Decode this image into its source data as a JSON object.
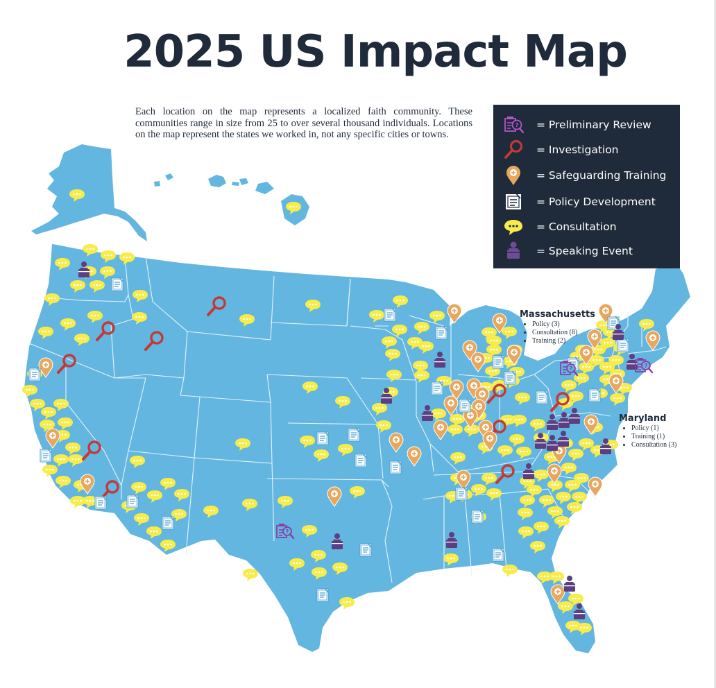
{
  "title": "2025 US Impact Map",
  "intro": "Each location on the map represents a localized faith community. These communities range in size from 25 to over several thousand individuals. Locations on the map represent the states we worked in, not any specific cities or towns.",
  "legend": [
    {
      "icon": "preliminary-review-icon",
      "label": "= Preliminary Review"
    },
    {
      "icon": "investigation-icon",
      "label": "= Investigation"
    },
    {
      "icon": "safeguarding-training-icon",
      "label": "= Safeguarding Training"
    },
    {
      "icon": "policy-development-icon",
      "label": "= Policy Development"
    },
    {
      "icon": "consultation-icon",
      "label": "= Consultation"
    },
    {
      "icon": "speaking-event-icon",
      "label": "= Speaking Event"
    }
  ],
  "callouts": {
    "massachusetts": {
      "name": "Massachusetts",
      "items": [
        "Policy (3)",
        "Consultation (8)",
        "Training (2)"
      ]
    },
    "maryland": {
      "name": "Maryland",
      "items": [
        "Policy (1)",
        "Training (1)",
        "Consultation (3)"
      ]
    }
  },
  "colors": {
    "map_fill": "#63b6df",
    "state_border": "#e6f3fa",
    "title": "#1f2a3a",
    "legend_bg": "#1f2a3a",
    "consultation": "#f7ec4a",
    "investigation": "#c23a36",
    "training": "#e9a75d",
    "review": "#8b3aa6",
    "speaking": "#5b3f82",
    "policy": "#ffffff"
  }
}
